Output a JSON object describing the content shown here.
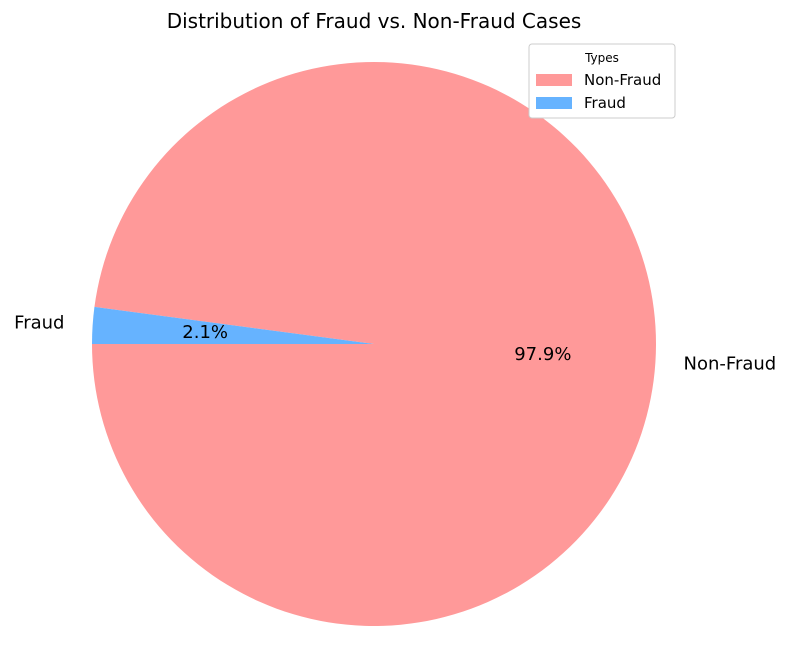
{
  "chart_data": {
    "type": "pie",
    "title": "Distribution of Fraud vs. Non-Fraud Cases",
    "slices": [
      {
        "label": "Non-Fraud",
        "value": 97.9,
        "pct_label": "97.9%",
        "color": "#ff9999"
      },
      {
        "label": "Fraud",
        "value": 2.1,
        "pct_label": "2.1%",
        "color": "#66b3ff"
      }
    ],
    "legend": {
      "title": "Types",
      "placement": "top-right",
      "entries": [
        "Non-Fraud",
        "Fraud"
      ]
    }
  }
}
